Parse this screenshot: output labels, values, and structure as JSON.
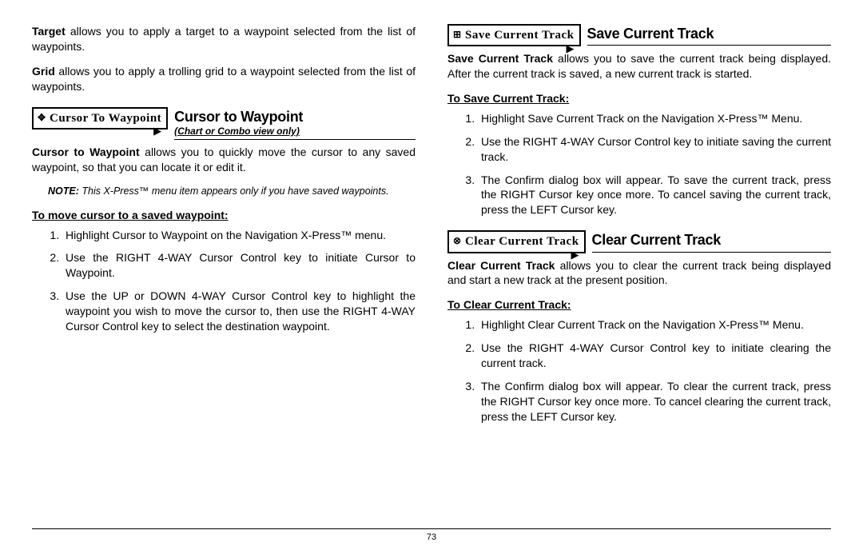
{
  "left": {
    "target_para_b": "Target",
    "target_para": " allows you to apply a target to a waypoint selected from the list of waypoints.",
    "grid_para_b": "Grid",
    "grid_para": " allows you to apply a trolling grid to a waypoint selected from the list of waypoints.",
    "cursor_section": {
      "menu_icon": "✥",
      "menu_text": "Cursor To Waypoint",
      "title": "Cursor to Waypoint",
      "subtitle": "(Chart or Combo view only)",
      "desc_b": "Cursor to Waypoint",
      "desc": " allows you to quickly move the cursor to any saved waypoint, so that you can locate it or edit it.",
      "note_b": "NOTE:",
      "note": " This X-Press™ menu item appears only if you have saved waypoints.",
      "howto_title": "To move cursor to a saved waypoint:",
      "steps": [
        "Highlight Cursor to Waypoint on the Navigation X-Press™ menu.",
        "Use the RIGHT 4-WAY Cursor Control key to initiate Cursor to Waypoint.",
        "Use the UP or DOWN 4-WAY Cursor Control key to highlight the waypoint you wish to move the cursor to, then use the RIGHT 4-WAY Cursor Control key to select the destination waypoint."
      ]
    }
  },
  "right": {
    "save_section": {
      "menu_icon": "⊞",
      "menu_text": "Save Current Track",
      "title": "Save Current Track",
      "desc_b": "Save Current Track",
      "desc": " allows you to save the current track being displayed. After the current track is saved, a new current track is started.",
      "howto_title": "To Save Current Track:",
      "steps": [
        "Highlight Save Current Track on the Navigation X-Press™ Menu.",
        "Use the RIGHT 4-WAY Cursor Control key to initiate saving the current track.",
        "The Confirm dialog box will appear. To save the current track, press the RIGHT Cursor key once more. To cancel saving the current track, press the LEFT Cursor key."
      ]
    },
    "clear_section": {
      "menu_icon": "⊗",
      "menu_text": "Clear Current Track",
      "title": "Clear Current Track",
      "desc_b": "Clear Current Track",
      "desc": " allows you to clear the current track being displayed and start a new track at the present position.",
      "howto_title": "To Clear Current Track:",
      "steps": [
        "Highlight Clear Current Track on the Navigation X-Press™ Menu.",
        "Use the RIGHT 4-WAY Cursor Control key to initiate clearing the current track.",
        "The Confirm dialog box will appear. To clear the current track, press the RIGHT Cursor key once more. To cancel clearing the current track, press the LEFT Cursor key."
      ]
    }
  },
  "page_number": "73"
}
